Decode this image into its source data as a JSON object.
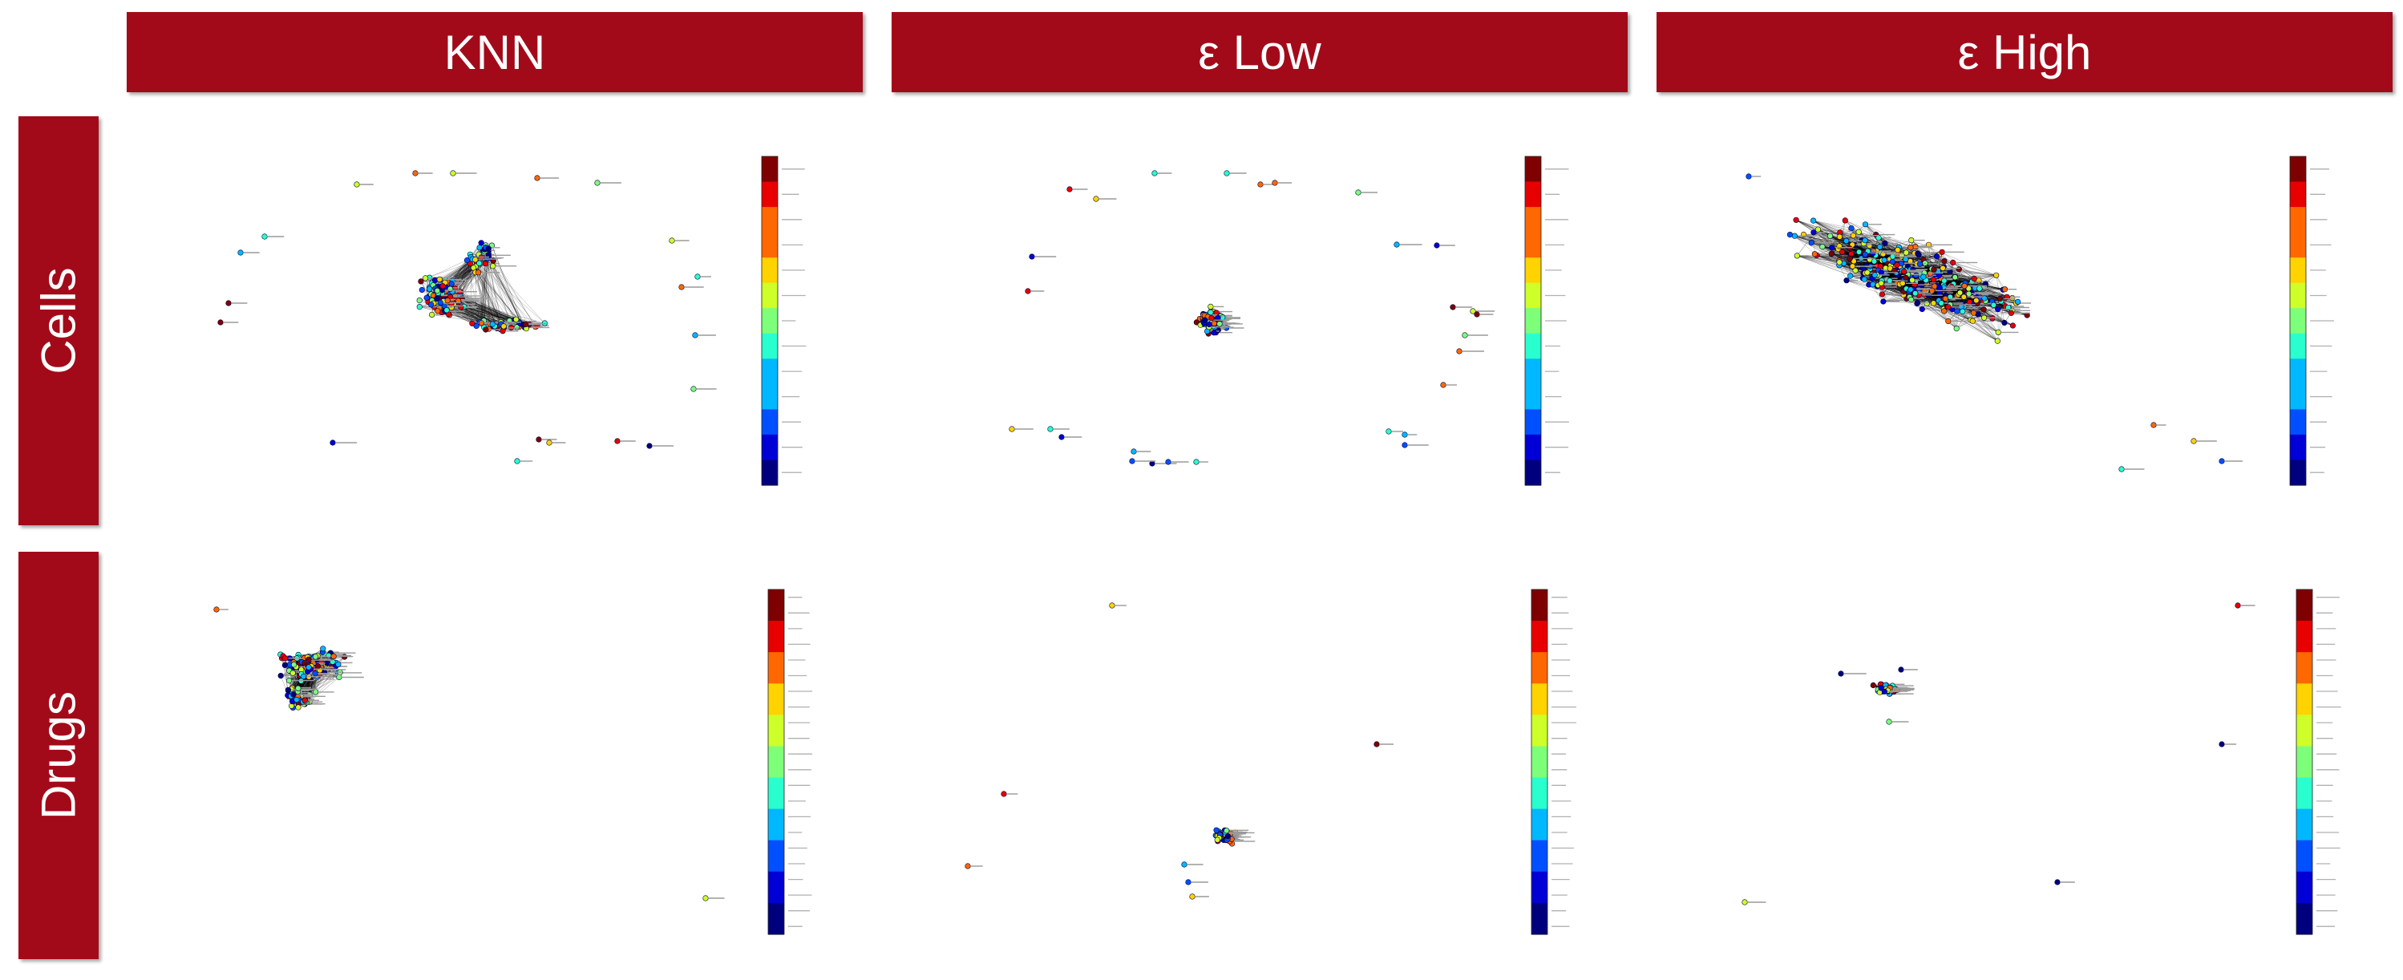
{
  "columns": [
    {
      "key": "knn",
      "label": "KNN"
    },
    {
      "key": "eps_low",
      "label": "ε Low"
    },
    {
      "key": "eps_high",
      "label": "ε High"
    }
  ],
  "rows": [
    {
      "key": "cells",
      "label": "Cells"
    },
    {
      "key": "drugs",
      "label": "Drugs"
    }
  ],
  "colors": {
    "header_bg": "#a30a19",
    "header_text": "#ffffff",
    "edge": "#000000",
    "colormap": [
      "#00007f",
      "#0000d6",
      "#0050ff",
      "#00b8ff",
      "#29ffce",
      "#7dff7a",
      "#ceff29",
      "#ffd300",
      "#ff6800",
      "#e80000",
      "#7f0000"
    ]
  },
  "panels": {
    "cells_knn": {
      "layout": "central cluster with scattered outlier nodes",
      "edge_density": "medium"
    },
    "cells_eps_low": {
      "layout": "small dense central cluster with many isolated nodes",
      "edge_density": "medium"
    },
    "cells_eps_high": {
      "layout": "single large densely connected elongated cluster",
      "edge_density": "high"
    },
    "drugs_knn": {
      "layout": "upper-left dense cluster with one isolated node",
      "edge_density": "medium"
    },
    "drugs_eps_low": {
      "layout": "small dense cluster at bottom with isolated nodes",
      "edge_density": "high"
    },
    "drugs_eps_high": {
      "layout": "small dense cluster with few isolated nodes",
      "edge_density": "high"
    }
  }
}
